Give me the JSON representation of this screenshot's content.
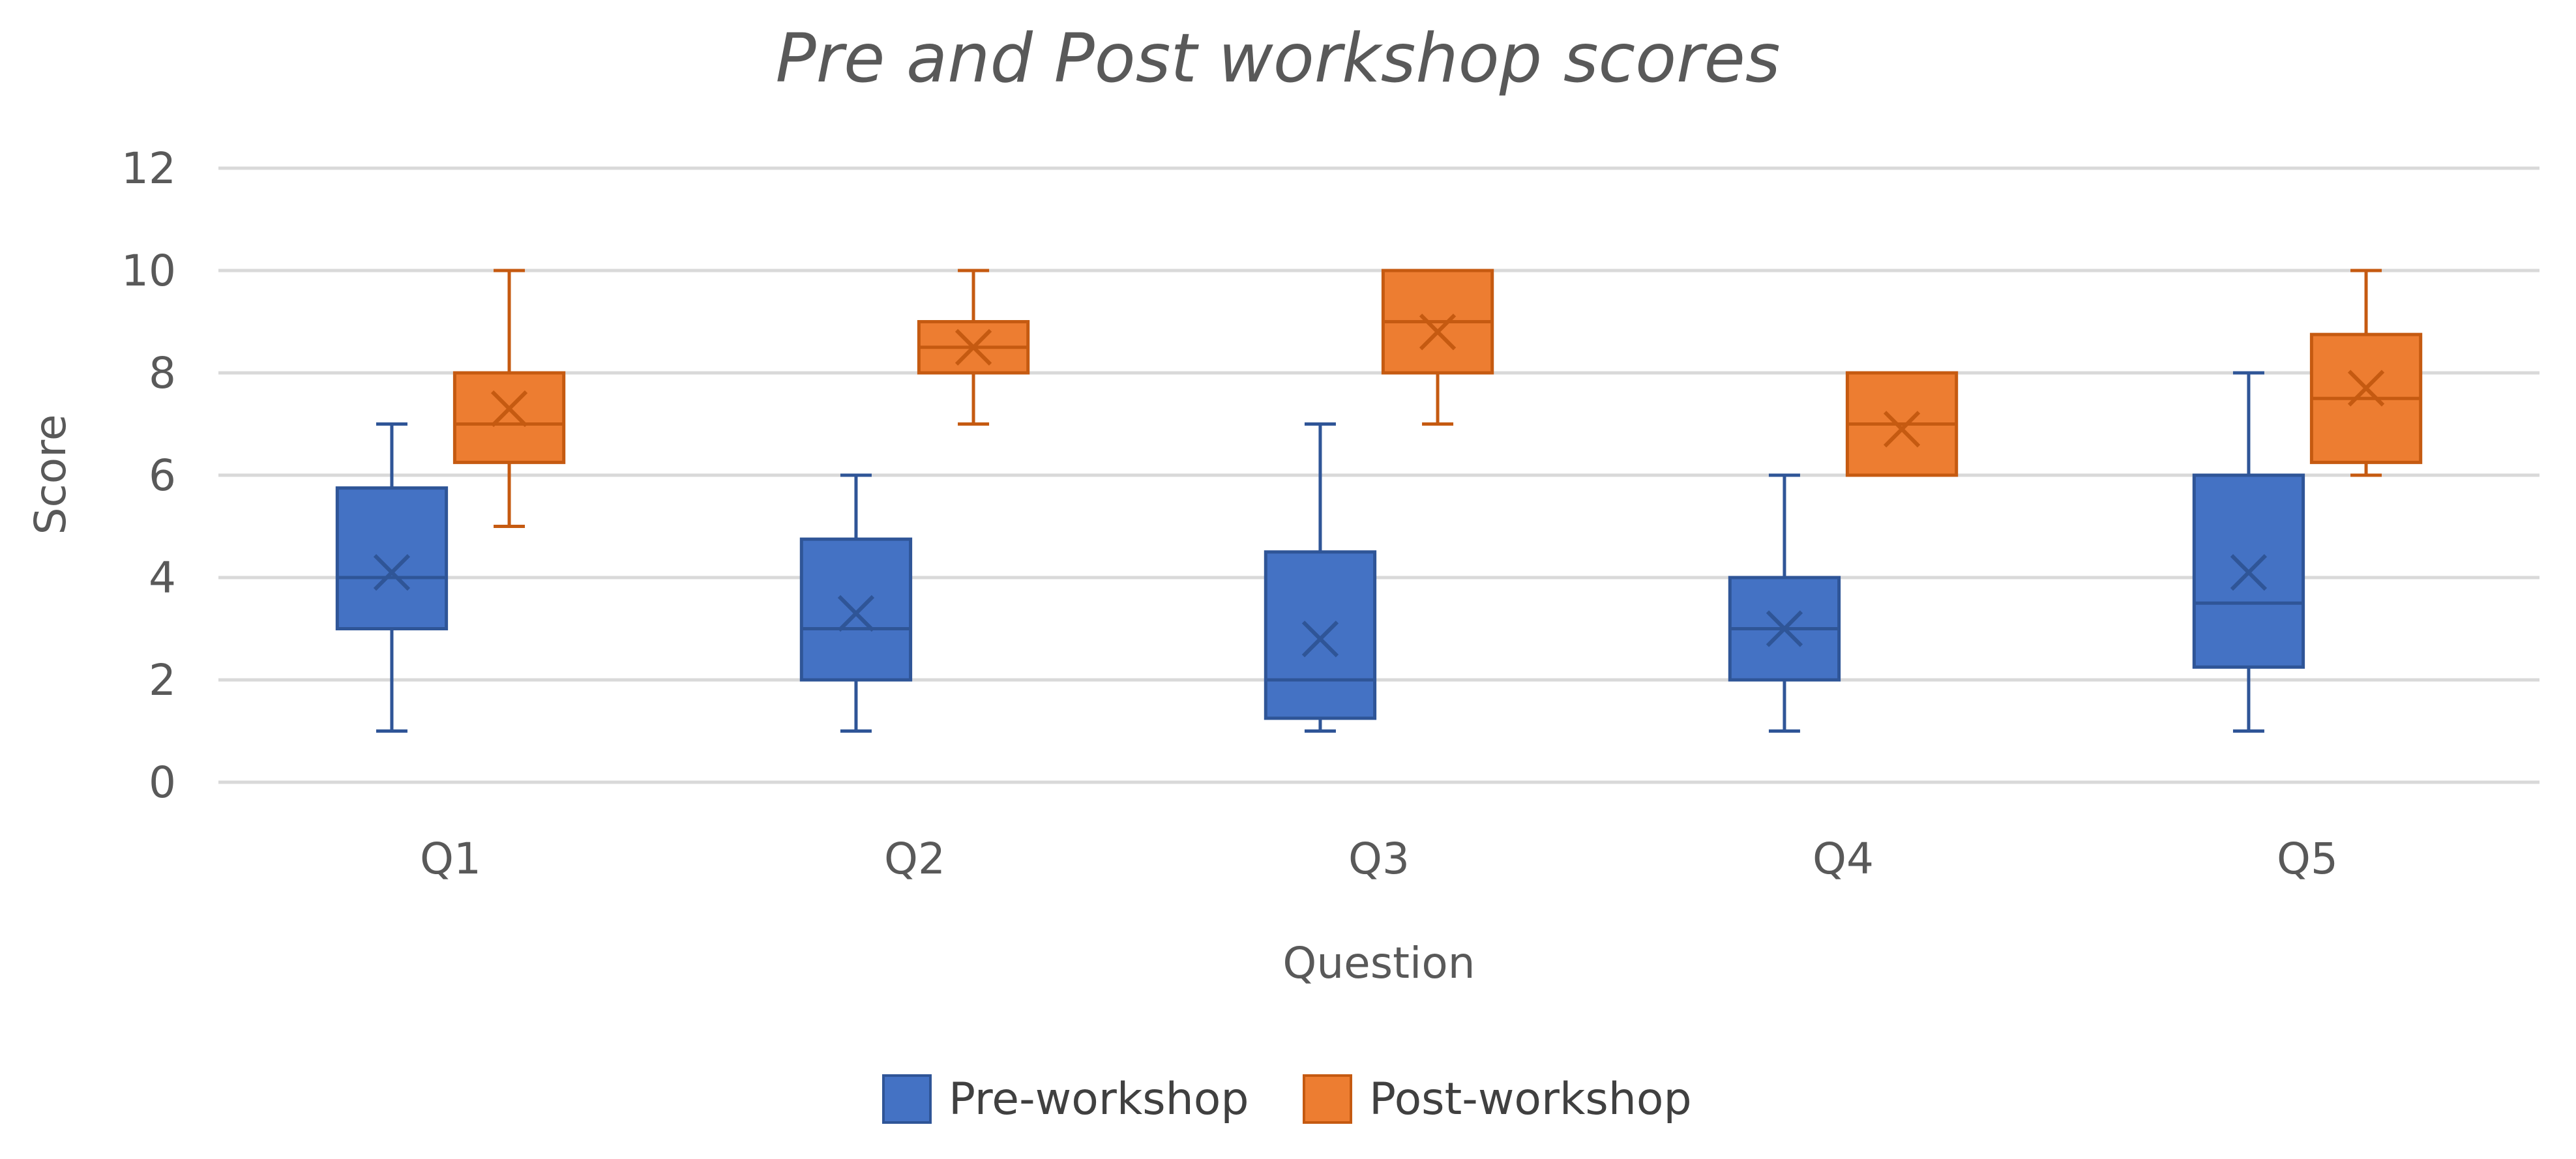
{
  "chart_data": {
    "type": "boxplot",
    "title": "Pre and Post workshop scores",
    "xlabel": "Question",
    "ylabel": "Score",
    "ylim": [
      0,
      12
    ],
    "yticks": [
      "0",
      "2",
      "4",
      "6",
      "8",
      "10",
      "12"
    ],
    "categories": [
      "Q1",
      "Q2",
      "Q3",
      "Q4",
      "Q5"
    ],
    "grid": true,
    "legend_position": "bottom",
    "series": [
      {
        "name": "Pre-workshop",
        "color": "#4472C4",
        "stroke": "#2F5597",
        "boxes": [
          {
            "min": 1,
            "q1": 3,
            "median": 4,
            "q3": 5.75,
            "max": 7,
            "mean": 4.1
          },
          {
            "min": 1,
            "q1": 2,
            "median": 3,
            "q3": 4.75,
            "max": 6,
            "mean": 3.3
          },
          {
            "min": 1,
            "q1": 1.25,
            "median": 2,
            "q3": 4.5,
            "max": 7,
            "mean": 2.8
          },
          {
            "min": 1,
            "q1": 2,
            "median": 3,
            "q3": 4,
            "max": 6,
            "mean": 3.0
          },
          {
            "min": 1,
            "q1": 2.25,
            "median": 3.5,
            "q3": 6,
            "max": 8,
            "mean": 4.1
          }
        ]
      },
      {
        "name": "Post-workshop",
        "color": "#ED7D31",
        "stroke": "#C55A11",
        "boxes": [
          {
            "min": 5,
            "q1": 6.25,
            "median": 7,
            "q3": 8,
            "max": 10,
            "mean": 7.3
          },
          {
            "min": 7,
            "q1": 8,
            "median": 8.5,
            "q3": 9,
            "max": 10,
            "mean": 8.5
          },
          {
            "min": 7,
            "q1": 8,
            "median": 9,
            "q3": 10,
            "max": 10,
            "mean": 8.8
          },
          {
            "min": 6,
            "q1": 6,
            "median": 7,
            "q3": 8,
            "max": 8,
            "mean": 6.9
          },
          {
            "min": 6,
            "q1": 6.25,
            "median": 7.5,
            "q3": 8.75,
            "max": 10,
            "mean": 7.7
          }
        ]
      }
    ]
  }
}
